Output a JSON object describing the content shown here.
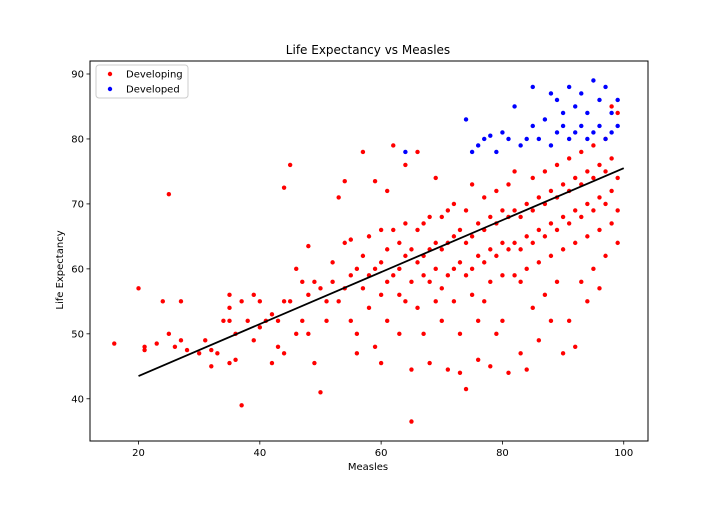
{
  "chart_data": {
    "type": "scatter",
    "title": "Life Expectancy vs Measles",
    "xlabel": "Measles",
    "ylabel": "Life Expectancy",
    "xlim": [
      12,
      104
    ],
    "ylim": [
      33.5,
      92
    ],
    "x_ticks": [
      20,
      40,
      60,
      80,
      100
    ],
    "y_ticks": [
      40,
      50,
      60,
      70,
      80,
      90
    ],
    "grid": false,
    "legend_position": "top-left",
    "series": [
      {
        "name": "Developing",
        "color": "#ff0000",
        "points": [
          [
            16,
            48.5
          ],
          [
            20,
            57
          ],
          [
            21,
            47.5
          ],
          [
            21,
            48
          ],
          [
            23,
            48.5
          ],
          [
            24,
            55
          ],
          [
            25,
            50
          ],
          [
            25,
            71.5
          ],
          [
            26,
            48
          ],
          [
            27,
            49
          ],
          [
            27,
            55
          ],
          [
            28,
            47.5
          ],
          [
            30,
            47
          ],
          [
            31,
            49
          ],
          [
            32,
            45
          ],
          [
            32,
            47.5
          ],
          [
            33,
            47
          ],
          [
            34,
            52
          ],
          [
            35,
            45.5
          ],
          [
            35,
            52
          ],
          [
            35,
            54
          ],
          [
            35,
            56
          ],
          [
            36,
            46
          ],
          [
            36,
            50
          ],
          [
            37,
            55
          ],
          [
            37,
            39
          ],
          [
            38,
            52
          ],
          [
            39,
            56
          ],
          [
            39,
            49
          ],
          [
            40,
            51
          ],
          [
            40,
            55
          ],
          [
            41,
            52
          ],
          [
            42,
            53
          ],
          [
            42,
            45.5
          ],
          [
            43,
            52
          ],
          [
            43,
            48
          ],
          [
            44,
            55
          ],
          [
            44,
            47
          ],
          [
            44,
            72.5
          ],
          [
            45,
            76
          ],
          [
            45,
            55
          ],
          [
            46,
            50
          ],
          [
            46,
            60
          ],
          [
            47,
            58
          ],
          [
            47,
            52
          ],
          [
            48,
            56
          ],
          [
            48,
            63.5
          ],
          [
            48,
            50
          ],
          [
            49,
            58
          ],
          [
            49,
            45.5
          ],
          [
            50,
            57
          ],
          [
            50,
            41
          ],
          [
            51,
            55
          ],
          [
            51,
            52
          ],
          [
            52,
            58
          ],
          [
            52,
            61
          ],
          [
            53,
            55
          ],
          [
            53,
            71
          ],
          [
            54,
            57
          ],
          [
            54,
            64
          ],
          [
            54,
            73.5
          ],
          [
            55,
            59
          ],
          [
            55,
            52
          ],
          [
            55,
            64.5
          ],
          [
            56,
            60
          ],
          [
            56,
            50
          ],
          [
            56,
            47
          ],
          [
            57,
            62
          ],
          [
            57,
            57
          ],
          [
            57,
            78
          ],
          [
            58,
            59
          ],
          [
            58,
            54
          ],
          [
            58,
            65
          ],
          [
            59,
            60
          ],
          [
            59,
            48
          ],
          [
            59,
            73.5
          ],
          [
            60,
            56
          ],
          [
            60,
            61
          ],
          [
            60,
            66
          ],
          [
            60,
            45.5
          ],
          [
            61,
            58
          ],
          [
            61,
            63
          ],
          [
            61,
            52
          ],
          [
            61,
            72
          ],
          [
            62,
            59
          ],
          [
            62,
            66
          ],
          [
            62,
            79
          ],
          [
            63,
            60
          ],
          [
            63,
            64
          ],
          [
            63,
            56
          ],
          [
            63,
            50
          ],
          [
            64,
            62
          ],
          [
            64,
            67
          ],
          [
            64,
            55
          ],
          [
            64,
            76
          ],
          [
            65,
            63
          ],
          [
            65,
            58
          ],
          [
            65,
            44.5
          ],
          [
            65,
            36.5
          ],
          [
            66,
            61
          ],
          [
            66,
            66
          ],
          [
            66,
            54
          ],
          [
            66,
            78
          ],
          [
            67,
            62
          ],
          [
            67,
            67
          ],
          [
            67,
            59
          ],
          [
            67,
            50
          ],
          [
            68,
            63
          ],
          [
            68,
            58
          ],
          [
            68,
            68
          ],
          [
            68,
            45.5
          ],
          [
            69,
            64
          ],
          [
            69,
            60
          ],
          [
            69,
            55
          ],
          [
            69,
            74
          ],
          [
            70,
            63
          ],
          [
            70,
            68
          ],
          [
            70,
            57
          ],
          [
            70,
            52
          ],
          [
            71,
            64
          ],
          [
            71,
            59
          ],
          [
            71,
            69
          ],
          [
            71,
            44.5
          ],
          [
            72,
            65
          ],
          [
            72,
            60
          ],
          [
            72,
            55
          ],
          [
            72,
            70
          ],
          [
            73,
            66
          ],
          [
            73,
            61
          ],
          [
            73,
            50
          ],
          [
            73,
            44
          ],
          [
            74,
            64
          ],
          [
            74,
            59
          ],
          [
            74,
            69
          ],
          [
            74,
            41.5
          ],
          [
            75,
            65
          ],
          [
            75,
            60
          ],
          [
            75,
            73
          ],
          [
            75,
            56
          ],
          [
            76,
            67
          ],
          [
            76,
            62
          ],
          [
            76,
            52
          ],
          [
            76,
            46
          ],
          [
            77,
            66
          ],
          [
            77,
            61
          ],
          [
            77,
            71
          ],
          [
            77,
            55
          ],
          [
            78,
            68
          ],
          [
            78,
            63
          ],
          [
            78,
            58
          ],
          [
            78,
            45
          ],
          [
            79,
            67
          ],
          [
            79,
            62
          ],
          [
            79,
            72
          ],
          [
            79,
            50
          ],
          [
            80,
            69
          ],
          [
            80,
            64
          ],
          [
            80,
            59
          ],
          [
            80,
            52
          ],
          [
            81,
            68
          ],
          [
            81,
            63
          ],
          [
            81,
            73
          ],
          [
            81,
            44
          ],
          [
            82,
            69
          ],
          [
            82,
            64
          ],
          [
            82,
            59
          ],
          [
            82,
            75
          ],
          [
            83,
            68
          ],
          [
            83,
            63
          ],
          [
            83,
            58
          ],
          [
            83,
            47
          ],
          [
            84,
            70
          ],
          [
            84,
            65
          ],
          [
            84,
            60
          ],
          [
            84,
            44.5
          ],
          [
            85,
            69
          ],
          [
            85,
            64
          ],
          [
            85,
            74
          ],
          [
            85,
            54
          ],
          [
            86,
            71
          ],
          [
            86,
            66
          ],
          [
            86,
            61
          ],
          [
            86,
            49
          ],
          [
            87,
            70
          ],
          [
            87,
            65
          ],
          [
            87,
            75
          ],
          [
            87,
            56
          ],
          [
            88,
            72
          ],
          [
            88,
            67
          ],
          [
            88,
            62
          ],
          [
            88,
            52
          ],
          [
            89,
            71
          ],
          [
            89,
            66
          ],
          [
            89,
            76
          ],
          [
            89,
            58
          ],
          [
            90,
            73
          ],
          [
            90,
            68
          ],
          [
            90,
            63
          ],
          [
            90,
            47
          ],
          [
            91,
            72
          ],
          [
            91,
            67
          ],
          [
            91,
            77
          ],
          [
            91,
            52
          ],
          [
            92,
            74
          ],
          [
            92,
            69
          ],
          [
            92,
            64
          ],
          [
            92,
            48
          ],
          [
            93,
            73
          ],
          [
            93,
            68
          ],
          [
            93,
            78
          ],
          [
            93,
            58
          ],
          [
            94,
            75
          ],
          [
            94,
            70
          ],
          [
            94,
            65
          ],
          [
            94,
            55
          ],
          [
            95,
            74
          ],
          [
            95,
            69
          ],
          [
            95,
            79
          ],
          [
            95,
            60
          ],
          [
            96,
            76
          ],
          [
            96,
            71
          ],
          [
            96,
            66
          ],
          [
            96,
            57
          ],
          [
            97,
            75
          ],
          [
            97,
            70
          ],
          [
            97,
            80
          ],
          [
            97,
            62
          ],
          [
            98,
            72
          ],
          [
            98,
            67
          ],
          [
            98,
            77
          ],
          [
            98,
            85
          ],
          [
            99,
            74
          ],
          [
            99,
            69
          ],
          [
            99,
            64
          ],
          [
            99,
            84
          ]
        ]
      },
      {
        "name": "Developed",
        "color": "#0000ff",
        "points": [
          [
            64,
            78
          ],
          [
            74,
            83
          ],
          [
            75,
            78
          ],
          [
            76,
            79
          ],
          [
            77,
            80
          ],
          [
            78,
            80.5
          ],
          [
            79,
            78
          ],
          [
            80,
            81
          ],
          [
            81,
            80
          ],
          [
            82,
            85
          ],
          [
            83,
            79
          ],
          [
            84,
            80
          ],
          [
            85,
            82
          ],
          [
            85,
            88
          ],
          [
            86,
            80
          ],
          [
            87,
            83
          ],
          [
            88,
            79
          ],
          [
            88,
            87
          ],
          [
            89,
            81
          ],
          [
            89,
            86
          ],
          [
            90,
            82
          ],
          [
            90,
            84
          ],
          [
            91,
            80
          ],
          [
            91,
            88
          ],
          [
            92,
            81
          ],
          [
            92,
            85
          ],
          [
            93,
            82
          ],
          [
            93,
            87
          ],
          [
            94,
            80
          ],
          [
            94,
            84
          ],
          [
            95,
            81
          ],
          [
            95,
            89
          ],
          [
            96,
            82
          ],
          [
            96,
            86
          ],
          [
            97,
            80
          ],
          [
            97,
            88
          ],
          [
            98,
            81
          ],
          [
            98,
            84
          ],
          [
            99,
            82
          ],
          [
            99,
            86
          ]
        ]
      }
    ],
    "trend_line": {
      "color": "#000000",
      "from": [
        20,
        43.5
      ],
      "to": [
        100,
        75.5
      ]
    }
  }
}
